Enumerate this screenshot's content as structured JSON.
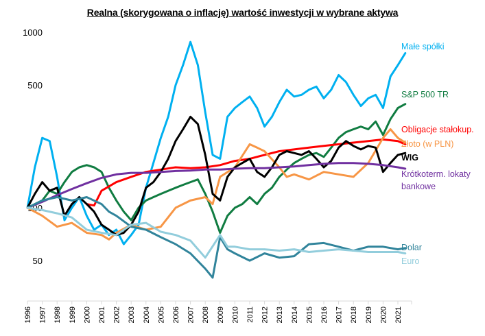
{
  "chart_data": {
    "type": "line",
    "title": "Realna (skorygowana  o inflację)  wartość inwestycji w wybrane aktywa",
    "xlabel": "",
    "ylabel": "",
    "yscale": "log",
    "ylim": [
      29.4,
      1000
    ],
    "xlim": [
      1996,
      2022
    ],
    "grid": false,
    "legend": "right-end-labels",
    "y_ticks": [
      {
        "value": 1000,
        "label": "1000"
      },
      {
        "value": 500,
        "label": "500"
      },
      {
        "value": 100,
        "label": "100"
      },
      {
        "value": 50,
        "label": "50"
      }
    ],
    "x_ticks": [
      "1996",
      "1997",
      "1998",
      "1999",
      "2000",
      "2001",
      "2002",
      "2003",
      "2004",
      "2005",
      "2006",
      "2007",
      "2008",
      "2009",
      "2010",
      "2011",
      "2012",
      "2013",
      "2014",
      "2015",
      "2016",
      "2017",
      "2018",
      "2019",
      "2020",
      "2021"
    ],
    "series": [
      {
        "name": "Małe spółki",
        "label": "Małe spółki",
        "color": "#00B0F0",
        "bold": false,
        "x": [
          1996,
          1996.5,
          1997,
          1997.5,
          1998,
          1998.5,
          1999,
          1999.5,
          2000,
          2000.5,
          2001,
          2001.5,
          2002,
          2002.5,
          2003,
          2003.5,
          2004,
          2004.5,
          2005,
          2005.5,
          2006,
          2006.5,
          2007,
          2007.5,
          2008,
          2008.5,
          2009,
          2009.5,
          2010,
          2010.5,
          2011,
          2011.5,
          2012,
          2012.5,
          2013,
          2013.5,
          2014,
          2014.5,
          2015,
          2015.5,
          2016,
          2016.5,
          2017,
          2017.5,
          2018,
          2018.5,
          2019,
          2019.5,
          2020,
          2020.5,
          2021,
          2021.5
        ],
        "values": [
          100,
          170,
          250,
          240,
          150,
          85,
          100,
          115,
          90,
          75,
          80,
          70,
          75,
          62,
          70,
          80,
          130,
          180,
          250,
          330,
          500,
          650,
          880,
          650,
          350,
          200,
          190,
          330,
          370,
          400,
          430,
          370,
          290,
          330,
          400,
          470,
          430,
          440,
          470,
          490,
          420,
          470,
          570,
          520,
          440,
          380,
          420,
          440,
          370,
          560,
          650,
          760
        ]
      },
      {
        "name": "S&P 500 TR",
        "label": "S&P 500 TR",
        "color": "#107C41",
        "bold": false,
        "x": [
          1996,
          1997,
          1997.5,
          1998,
          1998.5,
          1999,
          1999.5,
          2000,
          2000.5,
          2001,
          2001.5,
          2002,
          2002.5,
          2003,
          2003.5,
          2004,
          2004.5,
          2005,
          2005.5,
          2006,
          2006.5,
          2007,
          2007.5,
          2008,
          2008.5,
          2009,
          2009.5,
          2010,
          2010.5,
          2011,
          2011.5,
          2012,
          2012.5,
          2013,
          2013.5,
          2014,
          2014.5,
          2015,
          2015.5,
          2016,
          2016.5,
          2017,
          2017.5,
          2018,
          2018.5,
          2019,
          2019.5,
          2020,
          2020.5,
          2021,
          2021.5
        ],
        "values": [
          100,
          110,
          125,
          120,
          140,
          160,
          170,
          175,
          170,
          160,
          130,
          110,
          95,
          85,
          100,
          110,
          115,
          120,
          125,
          130,
          135,
          140,
          145,
          120,
          95,
          72,
          90,
          100,
          105,
          115,
          105,
          120,
          130,
          150,
          165,
          180,
          190,
          200,
          205,
          195,
          220,
          250,
          270,
          280,
          290,
          280,
          310,
          260,
          320,
          370,
          390
        ]
      },
      {
        "name": "Obligacje stałokup.",
        "label": "Obligacje stałokup.",
        "color": "#FF0000",
        "bold": false,
        "x": [
          2000,
          2000.5,
          2001,
          2002,
          2003,
          2004,
          2005,
          2006,
          2007,
          2008,
          2009,
          2010,
          2011,
          2012,
          2013,
          2014,
          2015,
          2016,
          2017,
          2018,
          2019,
          2020,
          2021,
          2021.5
        ],
        "values": [
          105,
          103,
          125,
          140,
          150,
          160,
          165,
          170,
          168,
          170,
          175,
          185,
          190,
          200,
          210,
          215,
          220,
          225,
          230,
          235,
          240,
          245,
          240,
          230
        ]
      },
      {
        "name": "Złoto (w PLN)",
        "label": "Złoto (w PLN)",
        "color": "#F79646",
        "bold": false,
        "x": [
          1996,
          1997,
          1998,
          1999,
          2000,
          2001,
          2001.5,
          2002,
          2003,
          2004,
          2005,
          2006,
          2007,
          2008,
          2008.5,
          2009,
          2010,
          2011,
          2011.5,
          2012,
          2013,
          2013.5,
          2014,
          2015,
          2016,
          2017,
          2018,
          2019,
          2020,
          2020.5,
          2021,
          2021.5
        ],
        "values": [
          100,
          90,
          78,
          82,
          72,
          70,
          66,
          72,
          80,
          75,
          78,
          100,
          110,
          115,
          105,
          150,
          170,
          230,
          220,
          210,
          170,
          150,
          155,
          145,
          160,
          155,
          150,
          180,
          250,
          280,
          250,
          235
        ]
      },
      {
        "name": "WIG",
        "label": "WIG",
        "color": "#000000",
        "bold": true,
        "x": [
          1996,
          1996.5,
          1997,
          1997.5,
          1998,
          1998.5,
          1999,
          1999.5,
          2000,
          2000.5,
          2001,
          2001.5,
          2002,
          2002.5,
          2003,
          2003.5,
          2004,
          2004.5,
          2005,
          2005.5,
          2006,
          2006.5,
          2007,
          2007.5,
          2008,
          2008.5,
          2009,
          2009.5,
          2010,
          2010.5,
          2011,
          2011.5,
          2012,
          2012.5,
          2013,
          2013.5,
          2014,
          2014.5,
          2015,
          2015.5,
          2016,
          2016.5,
          2017,
          2017.5,
          2018,
          2018.5,
          2019,
          2019.5,
          2020,
          2020.5,
          2021,
          2021.5
        ],
        "values": [
          100,
          120,
          140,
          125,
          130,
          90,
          105,
          115,
          105,
          95,
          80,
          75,
          70,
          72,
          80,
          95,
          130,
          140,
          160,
          190,
          240,
          280,
          330,
          300,
          200,
          120,
          110,
          150,
          170,
          180,
          190,
          160,
          150,
          170,
          200,
          210,
          205,
          200,
          210,
          190,
          170,
          185,
          220,
          240,
          225,
          215,
          225,
          220,
          160,
          180,
          200,
          205
        ]
      },
      {
        "name": "Krótkoterm. lokaty bankowe",
        "label": "Krótkoterm. lokaty",
        "label2": "bankowe",
        "color": "#7030A0",
        "bold": false,
        "x": [
          1996,
          1997,
          1998,
          1999,
          2000,
          2001,
          2002,
          2003,
          2004,
          2005,
          2006,
          2007,
          2008,
          2009,
          2010,
          2011,
          2012,
          2013,
          2014,
          2015,
          2016,
          2017,
          2018,
          2019,
          2020,
          2021,
          2021.5
        ],
        "values": [
          100,
          108,
          118,
          128,
          138,
          148,
          155,
          158,
          158,
          160,
          162,
          163,
          165,
          165,
          167,
          168,
          168,
          170,
          172,
          175,
          178,
          180,
          180,
          178,
          175,
          170,
          167
        ]
      },
      {
        "name": "Dolar",
        "label": "Dolar",
        "color": "#31849B",
        "bold": false,
        "x": [
          1996,
          1997,
          1998,
          1999,
          2000,
          2001,
          2001.5,
          2002,
          2003,
          2004,
          2005,
          2006,
          2007,
          2008,
          2008.5,
          2009,
          2009.5,
          2010,
          2011,
          2012,
          2013,
          2014,
          2015,
          2016,
          2017,
          2018,
          2019,
          2020,
          2021,
          2021.5
        ],
        "values": [
          100,
          110,
          115,
          110,
          115,
          105,
          95,
          90,
          78,
          75,
          68,
          62,
          55,
          45,
          40,
          68,
          58,
          55,
          50,
          55,
          52,
          53,
          62,
          63,
          60,
          57,
          60,
          60,
          58,
          59
        ]
      },
      {
        "name": "Euro",
        "label": "Euro",
        "color": "#92CDDC",
        "bold": false,
        "x": [
          1996,
          1997,
          1998,
          1999,
          2000,
          2001,
          2002,
          2003,
          2004,
          2005,
          2006,
          2007,
          2008,
          2009,
          2009.5,
          2010,
          2011,
          2012,
          2013,
          2014,
          2015,
          2016,
          2017,
          2018,
          2019,
          2020,
          2021,
          2021.5
        ],
        "values": [
          100,
          97,
          93,
          88,
          75,
          72,
          70,
          80,
          82,
          73,
          70,
          65,
          52,
          70,
          60,
          60,
          58,
          58,
          57,
          58,
          56,
          57,
          58,
          57,
          56,
          56,
          56,
          55
        ]
      }
    ]
  }
}
